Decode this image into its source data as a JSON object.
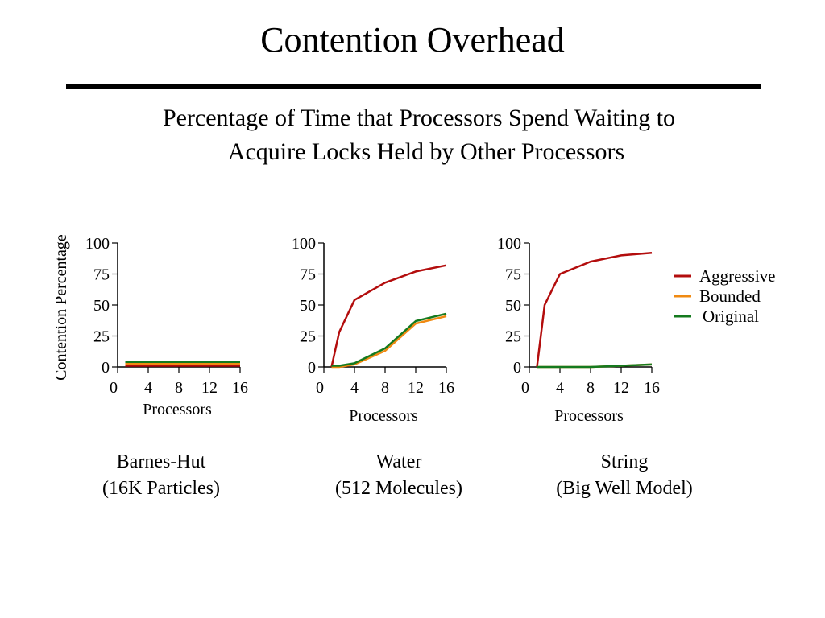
{
  "slide": {
    "title": "Contention Overhead",
    "subtitle_line1": "Percentage of Time that Processors Spend Waiting to",
    "subtitle_line2": "Acquire Locks Held by Other Processors"
  },
  "legend": [
    {
      "name": "Aggressive",
      "color": "#b30d0d"
    },
    {
      "name": "Bounded",
      "color": "#f08a12"
    },
    {
      "name": "Original",
      "color": "#147a1e"
    }
  ],
  "chart_data": [
    {
      "type": "line",
      "ylabel": "Contention Percentage",
      "xlabel": "Processors",
      "xticks": [
        0,
        4,
        8,
        12,
        16
      ],
      "yticks": [
        0,
        25,
        50,
        75,
        100
      ],
      "xlim": [
        0,
        16
      ],
      "ylim": [
        0,
        100
      ],
      "caption": [
        "Barnes-Hut",
        "(16K Particles)"
      ],
      "series": [
        {
          "name": "Aggressive",
          "x": [
            1,
            16
          ],
          "y": [
            1,
            1
          ]
        },
        {
          "name": "Bounded",
          "x": [
            1,
            16
          ],
          "y": [
            2.5,
            2.5
          ]
        },
        {
          "name": "Original",
          "x": [
            1,
            16
          ],
          "y": [
            4,
            4
          ]
        }
      ]
    },
    {
      "type": "line",
      "ylabel": "",
      "xlabel": "Processors",
      "xticks": [
        0,
        4,
        8,
        12,
        16
      ],
      "yticks": [
        0,
        25,
        50,
        75,
        100
      ],
      "xlim": [
        0,
        16
      ],
      "ylim": [
        0,
        100
      ],
      "caption": [
        "Water",
        "(512 Molecules)"
      ],
      "series": [
        {
          "name": "Aggressive",
          "x": [
            1,
            2,
            4,
            8,
            12,
            16
          ],
          "y": [
            0,
            28,
            54,
            68,
            77,
            82
          ]
        },
        {
          "name": "Bounded",
          "x": [
            1,
            2,
            4,
            8,
            12,
            16
          ],
          "y": [
            0,
            0,
            2,
            13,
            35,
            41
          ]
        },
        {
          "name": "Original",
          "x": [
            1,
            2,
            4,
            8,
            12,
            16
          ],
          "y": [
            1,
            1,
            3,
            15,
            37,
            43
          ]
        }
      ]
    },
    {
      "type": "line",
      "ylabel": "",
      "xlabel": "Processors",
      "xticks": [
        0,
        4,
        8,
        12,
        16
      ],
      "yticks": [
        0,
        25,
        50,
        75,
        100
      ],
      "xlim": [
        0,
        16
      ],
      "ylim": [
        0,
        100
      ],
      "caption": [
        "String",
        "(Big Well Model)"
      ],
      "series": [
        {
          "name": "Aggressive",
          "x": [
            1,
            2,
            4,
            8,
            12,
            16
          ],
          "y": [
            0,
            50,
            75,
            85,
            90,
            92
          ]
        },
        {
          "name": "Bounded",
          "x": [
            1,
            2,
            4,
            8,
            12,
            16
          ],
          "y": [
            0,
            0,
            0,
            0,
            1,
            2
          ]
        },
        {
          "name": "Original",
          "x": [
            1,
            2,
            4,
            8,
            12,
            16
          ],
          "y": [
            0,
            0,
            0,
            0,
            1,
            2
          ]
        }
      ]
    }
  ]
}
